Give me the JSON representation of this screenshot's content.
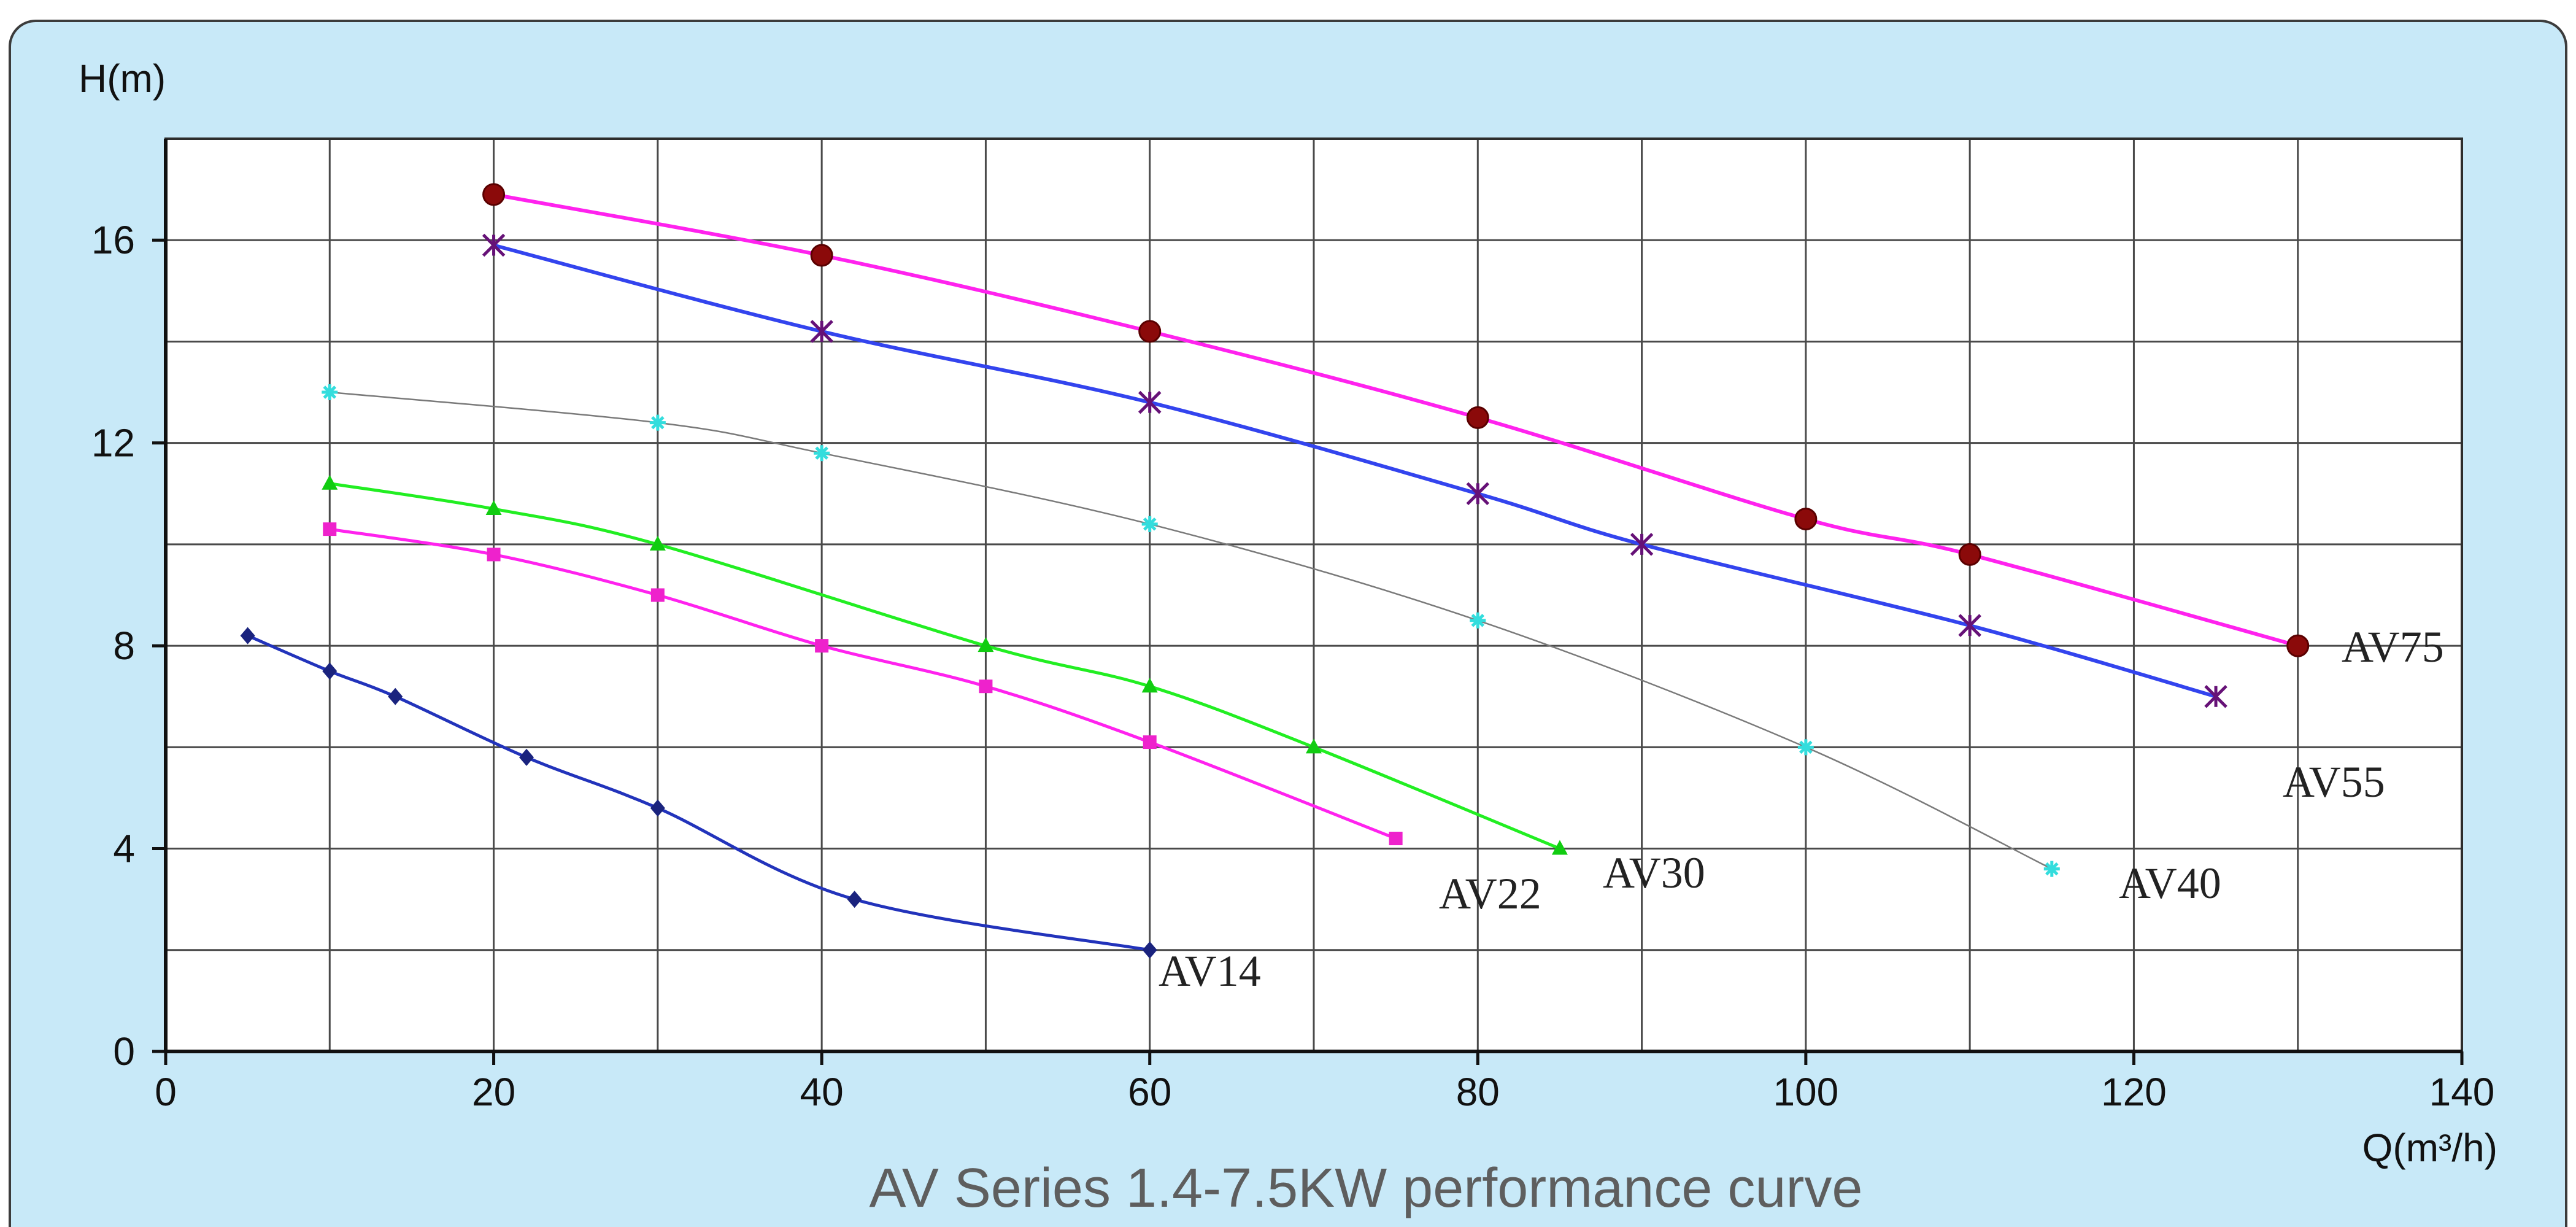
{
  "chart_data": {
    "type": "line",
    "title": "AV Series 1.4-7.5KW performance curve",
    "xlabel": "Q(m³/h)",
    "ylabel": "H(m)",
    "xlim": [
      0,
      140
    ],
    "ylim": [
      0,
      18
    ],
    "xticks": [
      0,
      20,
      40,
      60,
      80,
      100,
      120,
      140
    ],
    "yticks": [
      0,
      4,
      8,
      12,
      16
    ],
    "grid": true,
    "legend": "none",
    "series": [
      {
        "name": "AV14",
        "color": "#2233bb",
        "line_width": 5,
        "marker": "diamond",
        "marker_color": "#1a237e",
        "points": [
          [
            5,
            8.2
          ],
          [
            10,
            7.5
          ],
          [
            14,
            7.0
          ],
          [
            22,
            5.8
          ],
          [
            30,
            4.8
          ],
          [
            42,
            3.0
          ],
          [
            60,
            2.0
          ]
        ]
      },
      {
        "name": "AV22",
        "color": "#ff22ee",
        "line_width": 5,
        "marker": "square",
        "marker_color": "#ee22cc",
        "points": [
          [
            10,
            10.3
          ],
          [
            20,
            9.8
          ],
          [
            30,
            9.0
          ],
          [
            40,
            8.0
          ],
          [
            50,
            7.2
          ],
          [
            60,
            6.1
          ],
          [
            75,
            4.2
          ]
        ]
      },
      {
        "name": "AV30",
        "color": "#22ee22",
        "line_width": 5,
        "marker": "triangle",
        "marker_color": "#11cc11",
        "points": [
          [
            10,
            11.2
          ],
          [
            20,
            10.7
          ],
          [
            30,
            10.0
          ],
          [
            50,
            8.0
          ],
          [
            60,
            7.2
          ],
          [
            70,
            6.0
          ],
          [
            85,
            4.0
          ]
        ]
      },
      {
        "name": "AV40",
        "color": "#7a7a7a",
        "line_width": 2.5,
        "marker": "star",
        "marker_color": "#33dddd",
        "points": [
          [
            10,
            13.0
          ],
          [
            30,
            12.4
          ],
          [
            40,
            11.8
          ],
          [
            60,
            10.4
          ],
          [
            80,
            8.5
          ],
          [
            100,
            6.0
          ],
          [
            115,
            3.6
          ]
        ]
      },
      {
        "name": "AV55",
        "color": "#3344ee",
        "line_width": 6,
        "marker": "asterisk",
        "marker_color": "#661177",
        "points": [
          [
            20,
            15.9
          ],
          [
            40,
            14.2
          ],
          [
            60,
            12.8
          ],
          [
            80,
            11.0
          ],
          [
            90,
            10.0
          ],
          [
            110,
            8.4
          ],
          [
            125,
            7.0
          ]
        ]
      },
      {
        "name": "AV75",
        "color": "#ff22ee",
        "line_width": 6,
        "marker": "circle",
        "marker_color": "#8b0a0a",
        "points": [
          [
            20,
            16.9
          ],
          [
            40,
            15.7
          ],
          [
            60,
            14.2
          ],
          [
            80,
            12.5
          ],
          [
            100,
            10.5
          ],
          [
            110,
            9.8
          ],
          [
            130,
            8.0
          ]
        ]
      }
    ]
  }
}
